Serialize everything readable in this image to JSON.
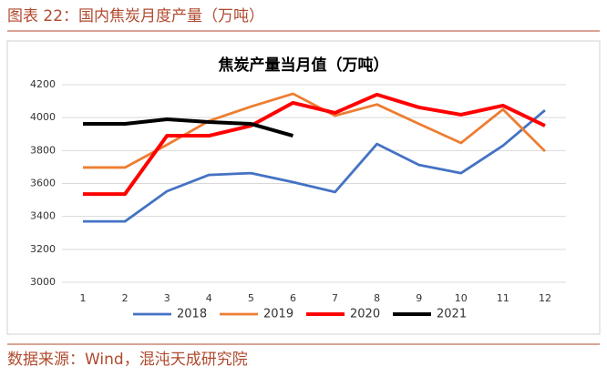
{
  "header": {
    "title": "图表 22：国内焦炭月度产量（万吨）"
  },
  "footer": {
    "source": "数据来源：Wind，混沌天成研究院"
  },
  "chart_data": {
    "type": "line",
    "title": "焦炭产量当月值（万吨）",
    "categories": [
      "1",
      "2",
      "3",
      "4",
      "5",
      "6",
      "7",
      "8",
      "9",
      "10",
      "11",
      "12"
    ],
    "series": [
      {
        "name": "2018",
        "color": "#4472c4",
        "values": [
          3370,
          3370,
          3553,
          3652,
          3663,
          3608,
          3548,
          3840,
          3713,
          3663,
          3830,
          4045
        ]
      },
      {
        "name": "2019",
        "color": "#ed7d31",
        "values": [
          3697,
          3697,
          3835,
          3980,
          4067,
          4145,
          4012,
          4080,
          3962,
          3846,
          4050,
          3796
        ]
      },
      {
        "name": "2020",
        "color": "#ff0000",
        "values": [
          3536,
          3536,
          3890,
          3890,
          3951,
          4090,
          4029,
          4140,
          4062,
          4018,
          4073,
          3951
        ]
      },
      {
        "name": "2021",
        "color": "#000000",
        "values": [
          3962,
          3962,
          3990,
          3973,
          3962,
          3890,
          null,
          null,
          null,
          null,
          null,
          null
        ]
      }
    ],
    "ylim": [
      3000,
      4200
    ],
    "yticks": [
      3000,
      3200,
      3400,
      3600,
      3800,
      4000,
      4200
    ],
    "grid": true,
    "legend": "bottom"
  }
}
